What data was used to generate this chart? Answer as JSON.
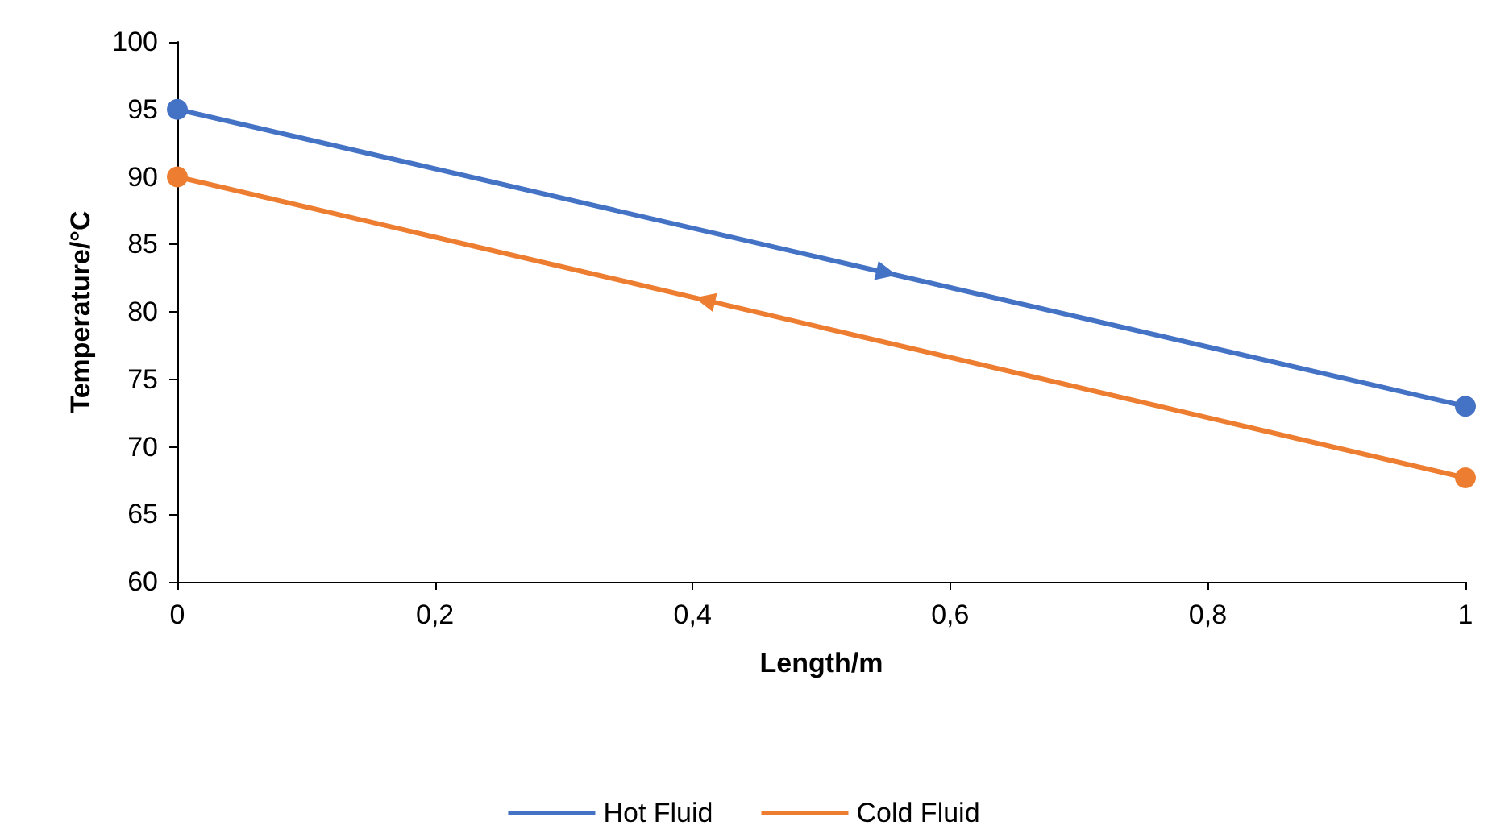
{
  "chart_data": {
    "type": "line",
    "xlabel": "Length/m",
    "ylabel": "Temperature/°C",
    "x": [
      0,
      1
    ],
    "series": [
      {
        "name": "Hot Fluid",
        "color": "#4472c4",
        "values": [
          95,
          73
        ]
      },
      {
        "name": "Cold Fluid",
        "color": "#ed7d31",
        "values": [
          90,
          67.7
        ]
      }
    ],
    "xlim": [
      0,
      1
    ],
    "xticks": [
      0,
      {
        "value": 0.2,
        "label": "0,2"
      },
      {
        "value": 0.4,
        "label": "0,4"
      },
      {
        "value": 0.6,
        "label": "0,6"
      },
      {
        "value": 0.8,
        "label": "0,8"
      },
      1
    ],
    "ylim": [
      60,
      100
    ],
    "yticks": [
      60,
      65,
      70,
      75,
      80,
      85,
      90,
      95,
      100
    ],
    "grid": false,
    "legend": "bottom",
    "marker": "circle",
    "line_style": "solid"
  }
}
